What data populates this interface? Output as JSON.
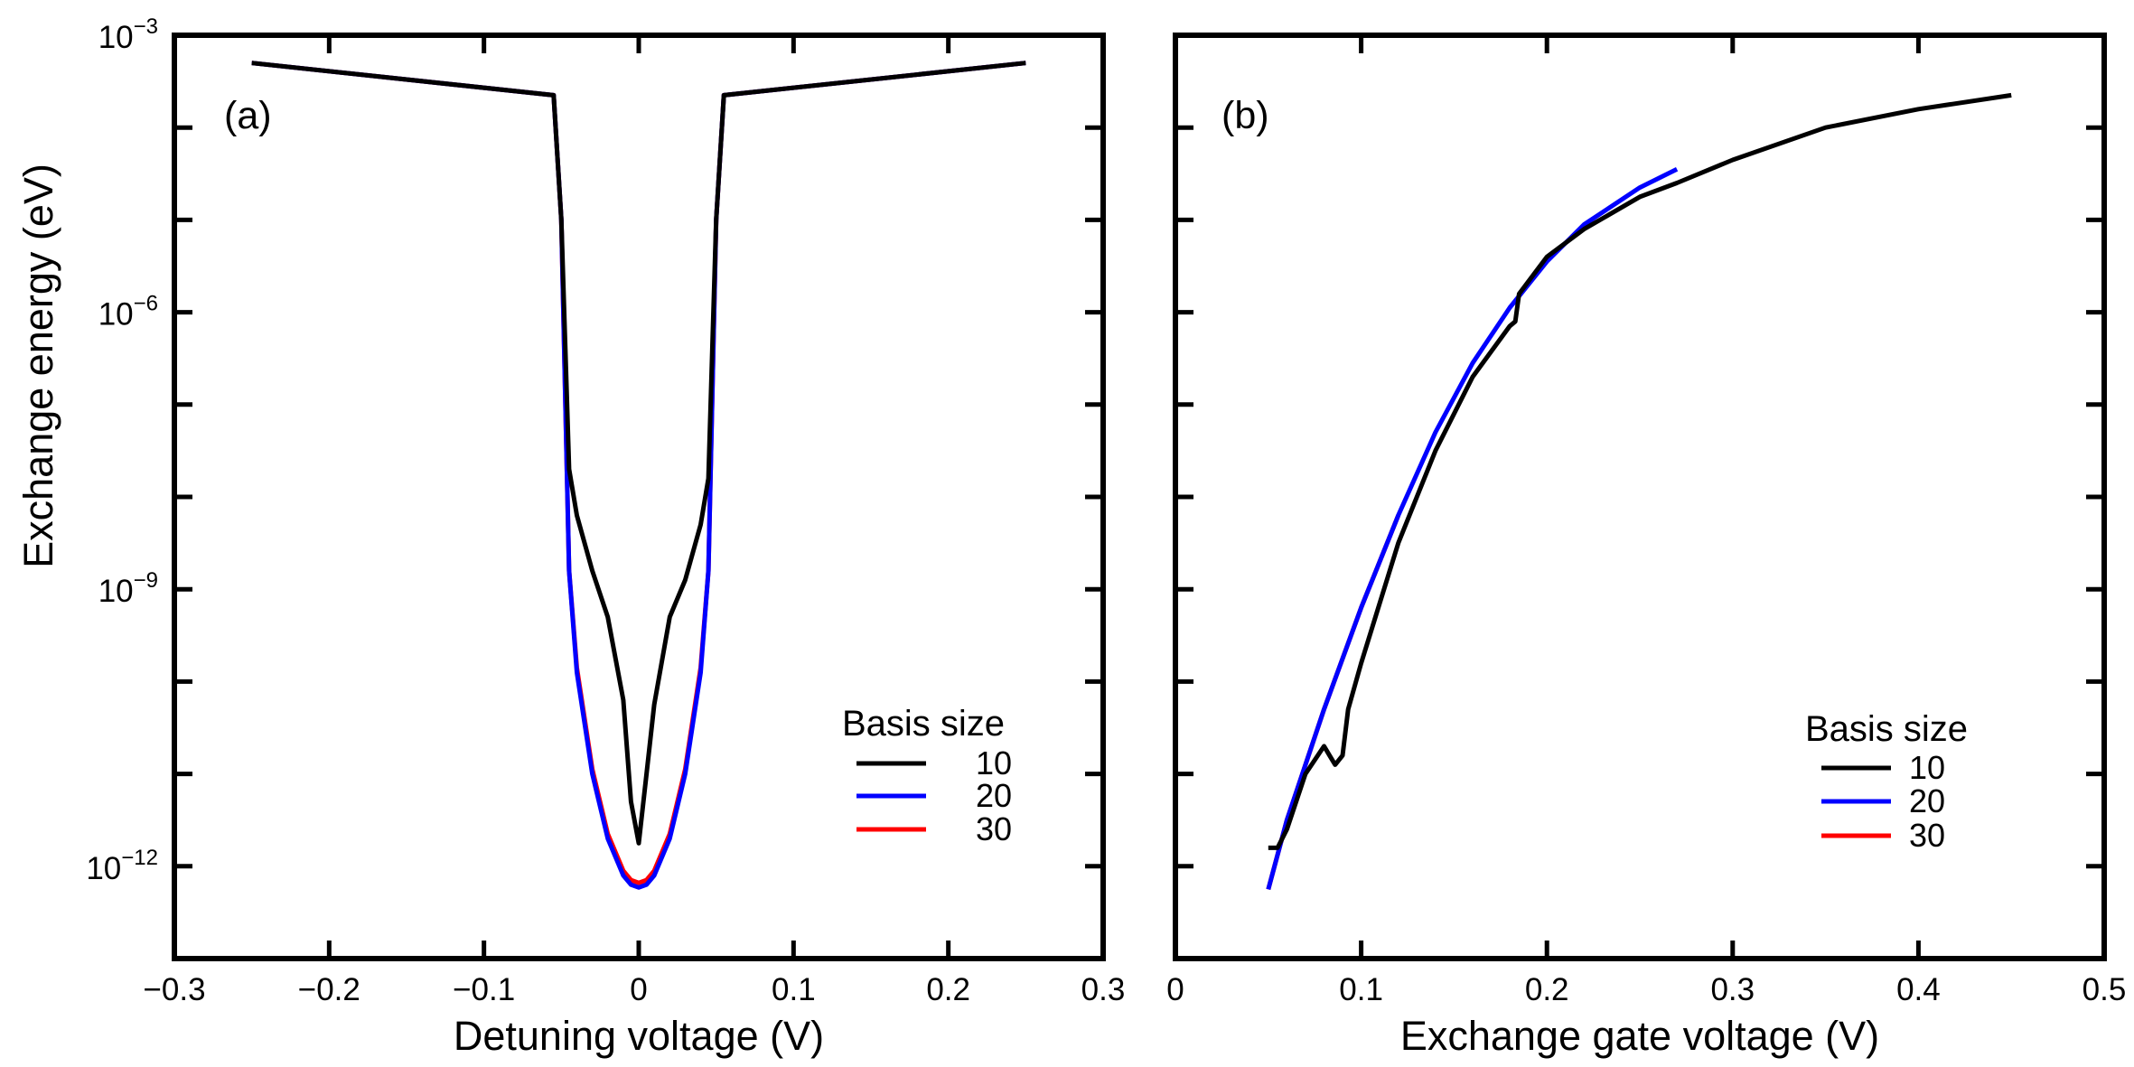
{
  "chart_data": [
    {
      "type": "line",
      "panel_label": "(a)",
      "xlabel": "Detuning voltage (V)",
      "ylabel": "Exchange energy (eV)",
      "xlim": [
        -0.3,
        0.3
      ],
      "ylim_log10": [
        -13,
        -3
      ],
      "yscale": "log",
      "x_ticks": [
        -0.3,
        -0.2,
        -0.1,
        0,
        0.1,
        0.2,
        0.3
      ],
      "x_tick_labels": [
        "−0.3",
        "−0.2",
        "−0.1",
        "0",
        "0.1",
        "0.2",
        "0.3"
      ],
      "y_tick_labels": [
        {
          "exp": -3,
          "base": "10",
          "sup": "−3"
        },
        {
          "exp": -6,
          "base": "10",
          "sup": "−6"
        },
        {
          "exp": -9,
          "base": "10",
          "sup": "−9"
        },
        {
          "exp": -12,
          "base": "10",
          "sup": "−12"
        }
      ],
      "legend": {
        "title": "Basis size",
        "position": "lower-right"
      },
      "series": [
        {
          "name": "10",
          "color": "#000000",
          "x": [
            -0.25,
            -0.055,
            -0.05,
            -0.045,
            -0.04,
            -0.03,
            -0.02,
            -0.01,
            -0.005,
            0,
            0.005,
            0.01,
            0.02,
            0.03,
            0.04,
            0.045,
            0.05,
            0.055,
            0.25
          ],
          "log10_y": [
            -3.3,
            -3.65,
            -5.0,
            -7.7,
            -8.2,
            -8.8,
            -9.3,
            -10.2,
            -11.3,
            -11.75,
            -11.0,
            -10.25,
            -9.3,
            -8.9,
            -8.3,
            -7.8,
            -5.0,
            -3.65,
            -3.3
          ]
        },
        {
          "name": "20",
          "color": "#0000ff",
          "x": [
            -0.25,
            -0.055,
            -0.05,
            -0.045,
            -0.04,
            -0.03,
            -0.02,
            -0.01,
            -0.005,
            0,
            0.005,
            0.01,
            0.02,
            0.03,
            0.04,
            0.045,
            0.05,
            0.055,
            0.25
          ],
          "log10_y": [
            -3.3,
            -3.65,
            -5.0,
            -8.8,
            -9.9,
            -11.0,
            -11.7,
            -12.1,
            -12.2,
            -12.23,
            -12.2,
            -12.1,
            -11.7,
            -11.0,
            -9.9,
            -8.8,
            -5.0,
            -3.65,
            -3.3
          ]
        },
        {
          "name": "30",
          "color": "#ff0000",
          "x": [
            -0.25,
            -0.055,
            -0.05,
            -0.045,
            -0.04,
            -0.03,
            -0.02,
            -0.01,
            -0.005,
            0,
            0.005,
            0.01,
            0.02,
            0.03,
            0.04,
            0.045,
            0.05,
            0.055,
            0.25
          ],
          "log10_y": [
            -3.3,
            -3.65,
            -5.0,
            -8.8,
            -9.85,
            -10.95,
            -11.65,
            -12.05,
            -12.15,
            -12.18,
            -12.15,
            -12.05,
            -11.65,
            -10.95,
            -9.85,
            -8.8,
            -5.0,
            -3.65,
            -3.3
          ]
        }
      ]
    },
    {
      "type": "line",
      "panel_label": "(b)",
      "xlabel": "Exchange gate voltage (V)",
      "ylabel": "",
      "xlim": [
        0,
        0.5
      ],
      "ylim_log10": [
        -13,
        -3
      ],
      "yscale": "log",
      "x_ticks": [
        0,
        0.1,
        0.2,
        0.3,
        0.4,
        0.5
      ],
      "x_tick_labels": [
        "0",
        "0.1",
        "0.2",
        "0.3",
        "0.4",
        "0.5"
      ],
      "legend": {
        "title": "Basis size",
        "position": "lower-right"
      },
      "series": [
        {
          "name": "10",
          "color": "#000000",
          "x": [
            0.05,
            0.055,
            0.06,
            0.07,
            0.08,
            0.083,
            0.086,
            0.09,
            0.093,
            0.1,
            0.12,
            0.14,
            0.16,
            0.18,
            0.183,
            0.185,
            0.2,
            0.22,
            0.25,
            0.27,
            0.3,
            0.35,
            0.4,
            0.45
          ],
          "log10_y": [
            -11.8,
            -11.8,
            -11.6,
            -11.0,
            -10.7,
            -10.8,
            -10.9,
            -10.8,
            -10.3,
            -9.8,
            -8.5,
            -7.5,
            -6.7,
            -6.15,
            -6.1,
            -5.8,
            -5.4,
            -5.1,
            -4.75,
            -4.6,
            -4.35,
            -4.0,
            -3.8,
            -3.65
          ]
        },
        {
          "name": "20",
          "color": "#0000ff",
          "x": [
            0.05,
            0.06,
            0.08,
            0.1,
            0.12,
            0.14,
            0.16,
            0.18,
            0.2,
            0.22,
            0.25,
            0.27
          ],
          "log10_y": [
            -12.25,
            -11.5,
            -10.3,
            -9.2,
            -8.2,
            -7.3,
            -6.55,
            -5.95,
            -5.45,
            -5.05,
            -4.65,
            -4.45
          ]
        },
        {
          "name": "30",
          "color": "#ff0000",
          "x": [
            0.05,
            0.06,
            0.08,
            0.1,
            0.12
          ],
          "log10_y": [
            -12.25,
            -11.5,
            -10.3,
            -9.2,
            -8.2
          ]
        }
      ]
    }
  ]
}
